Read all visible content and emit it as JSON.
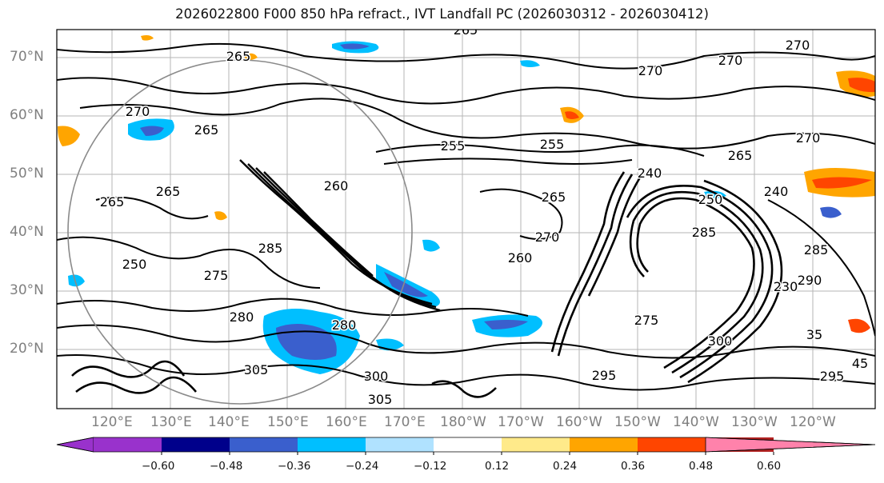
{
  "title": "2026022800 F000 850 hPa refract., IVT Landfall PC (2026030312 - 2026030412)",
  "lat_labels": [
    "70°N",
    "60°N",
    "50°N",
    "40°N",
    "30°N",
    "20°N"
  ],
  "lon_labels": [
    "120°E",
    "130°E",
    "140°E",
    "150°E",
    "160°E",
    "170°E",
    "180°W",
    "170°W",
    "160°W",
    "150°W",
    "140°W",
    "130°W",
    "120°W"
  ],
  "contour_labels": [
    "265",
    "265",
    "270",
    "270",
    "270",
    "270",
    "270",
    "260",
    "255",
    "255",
    "265",
    "240",
    "265",
    "265",
    "250",
    "270",
    "260",
    "275",
    "265",
    "285",
    "280",
    "300",
    "305",
    "305",
    "275",
    "280",
    "295",
    "300",
    "285",
    "285",
    "290",
    "295",
    "230",
    "35",
    "45",
    "240",
    "265",
    "250"
  ],
  "colorbar": {
    "ticks": [
      "−0.60",
      "−0.48",
      "−0.36",
      "−0.24",
      "−0.12",
      "0.12",
      "0.24",
      "0.36",
      "0.48",
      "0.60"
    ],
    "colors": [
      "#9932cc",
      "#00008b",
      "#3a5fcd",
      "#00bfff",
      "#b0e2ff",
      "#ffffff",
      "#ffea8a",
      "#ffa500",
      "#ff4500",
      "#b22222",
      "#ff82ab"
    ]
  }
}
